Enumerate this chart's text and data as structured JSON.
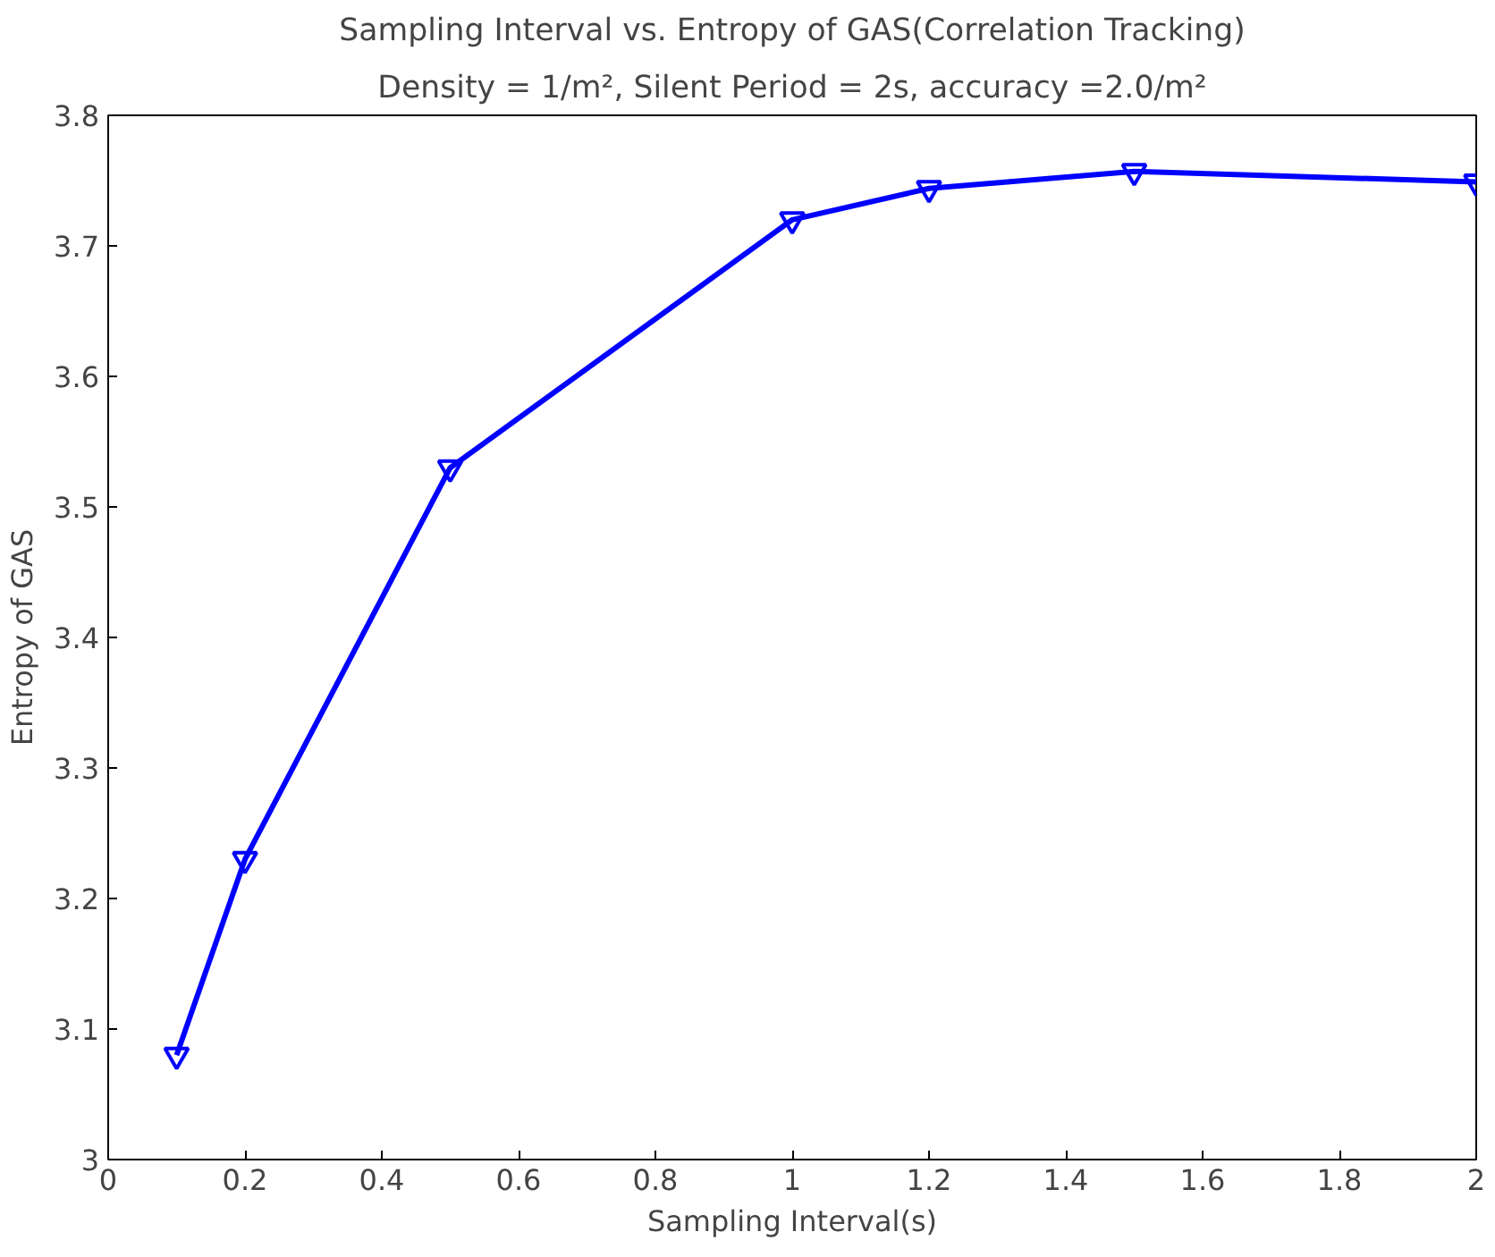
{
  "chart_data": {
    "type": "line",
    "title": "Sampling Interval vs. Entropy of GAS(Correlation Tracking)",
    "subtitle": "Density = 1/m², Silent Period = 2s, accuracy =2.0/m²",
    "xlabel": "Sampling Interval(s)",
    "ylabel": "Entropy of GAS",
    "x": [
      0.1,
      0.2,
      0.5,
      1.0,
      1.2,
      1.5,
      2.0
    ],
    "series": [
      {
        "color": "#0000ff",
        "values": [
          3.08,
          3.23,
          3.53,
          3.72,
          3.744,
          3.757,
          3.749
        ]
      }
    ],
    "xlim": [
      0,
      2
    ],
    "xticks": [
      0,
      0.2,
      0.4,
      0.6,
      0.8,
      1,
      1.2,
      1.4,
      1.6,
      1.8,
      2
    ],
    "ylim": [
      3,
      3.8
    ],
    "yticks": [
      3,
      3.1,
      3.2,
      3.3,
      3.4,
      3.5,
      3.6,
      3.7,
      3.8
    ],
    "marker": "triangle",
    "line_style": "solid",
    "grid": false
  }
}
